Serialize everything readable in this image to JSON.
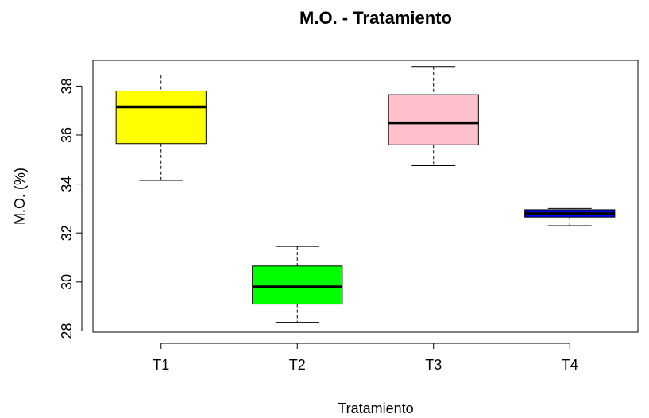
{
  "chart_data": {
    "type": "boxplot",
    "title": "M.O. - Tratamiento",
    "xlabel": "Tratamiento",
    "ylabel": "M.O. (%)",
    "ylim": [
      27.95,
      39.05
    ],
    "yticks": [
      28,
      30,
      32,
      34,
      36,
      38
    ],
    "yticks_labels": [
      "28",
      "30",
      "32",
      "34",
      "36",
      "38"
    ],
    "grid": false,
    "categories": [
      "T1",
      "T2",
      "T3",
      "T4"
    ],
    "boxes": [
      {
        "name": "T1",
        "min": 34.15,
        "q1": 35.65,
        "median": 37.15,
        "q3": 37.8,
        "max": 38.45,
        "color": "#FFFF00"
      },
      {
        "name": "T2",
        "min": 28.35,
        "q1": 29.1,
        "median": 29.8,
        "q3": 30.65,
        "max": 31.45,
        "color": "#00FF00"
      },
      {
        "name": "T3",
        "min": 34.75,
        "q1": 35.6,
        "median": 36.5,
        "q3": 37.65,
        "max": 38.8,
        "color": "#FFC0CB"
      },
      {
        "name": "T4",
        "min": 32.3,
        "q1": 32.65,
        "median": 32.8,
        "q3": 32.95,
        "max": 33.0,
        "color": "#0000FF"
      }
    ]
  }
}
